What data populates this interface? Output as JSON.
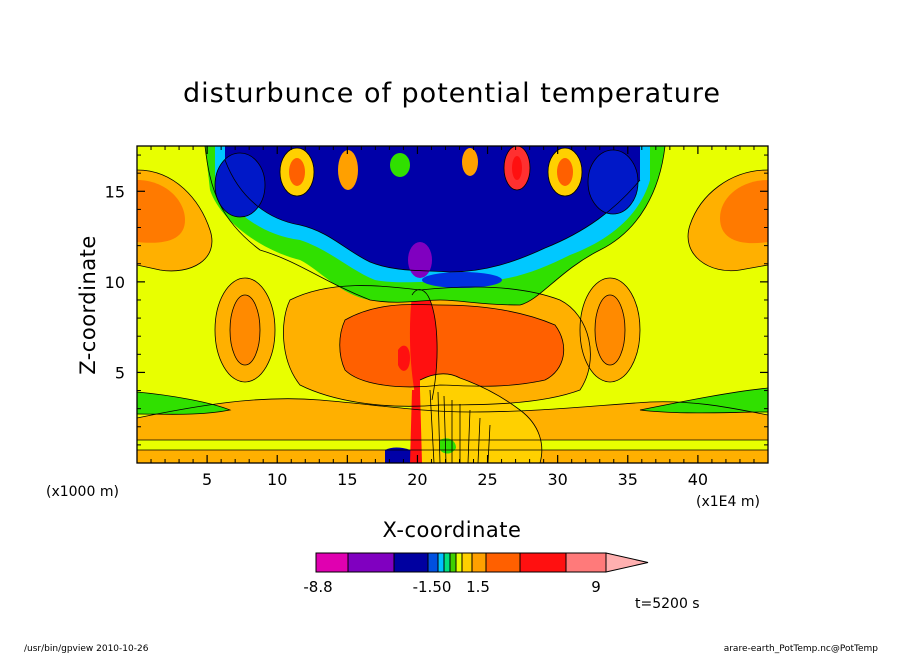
{
  "chart_data": {
    "type": "heatmap",
    "title": "disturbunce of potential temperature",
    "xlabel": "X-coordinate",
    "ylabel": "Z-coordinate",
    "xlim": [
      0,
      45
    ],
    "ylim": [
      0,
      17.5
    ],
    "x_ticks": [
      5,
      10,
      15,
      20,
      25,
      30,
      35,
      40
    ],
    "x_tick_labels": [
      "5",
      "10",
      "15",
      "20",
      "25",
      "30",
      "35",
      "40"
    ],
    "y_ticks": [
      5,
      10,
      15
    ],
    "y_tick_labels": [
      "5",
      "10",
      "15"
    ],
    "x_scale_note": "(x1E4 m)",
    "y_scale_note": "(x1000 m)",
    "colorbar": {
      "labels": [
        "-8.8",
        "-1.50",
        "1.5",
        "9"
      ],
      "colors": [
        "#e000b0",
        "#8000c0",
        "#0000a0",
        "#0050e0",
        "#00c0ff",
        "#00e080",
        "#40d000",
        "#e8ff00",
        "#ffd000",
        "#ffa000",
        "#ff6000",
        "#ff1010",
        "#ff7a7a",
        "#ffb0b0"
      ],
      "extend": "max"
    },
    "time_label": "t=5200 s"
  },
  "footer": {
    "left": "/usr/bin/gpview   2010-10-26",
    "right": "arare-earth_PotTemp.nc@PotTemp"
  }
}
